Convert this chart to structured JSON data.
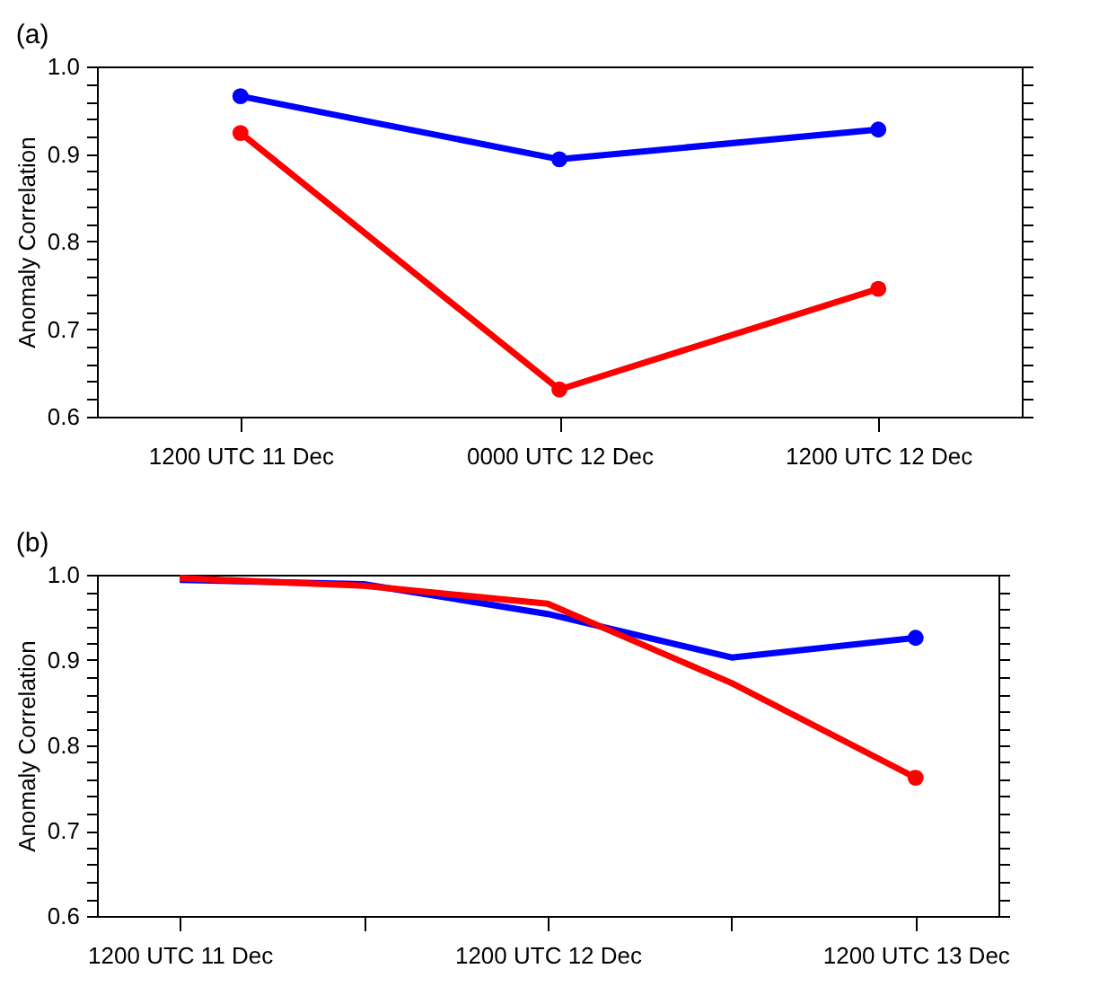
{
  "chart_data": [
    {
      "type": "line",
      "title": "(a)",
      "ylabel": "Anomaly Correlation",
      "categories": [
        "1200 UTC 11 Dec",
        "0000 UTC 12 Dec",
        "1200 UTC 12 Dec"
      ],
      "marker": "circle",
      "line_style": "solid",
      "grid": false,
      "series": [
        {
          "color": "#0000ff",
          "values": [
            0.966,
            0.894,
            0.928
          ]
        },
        {
          "color": "#ff0000",
          "values": [
            0.924,
            0.631,
            0.746
          ]
        }
      ],
      "ylim": [
        0.6,
        1.0
      ],
      "yticks": [
        0.6,
        {
          "value": 0.62,
          "label": null
        },
        {
          "value": 0.64,
          "label": null
        },
        {
          "value": 0.66,
          "label": null
        },
        {
          "value": 0.68,
          "label": null
        },
        0.7,
        {
          "value": 0.72,
          "label": null
        },
        {
          "value": 0.74,
          "label": null
        },
        {
          "value": 0.76,
          "label": null
        },
        {
          "value": 0.78,
          "label": null
        },
        0.8,
        {
          "value": 0.82,
          "label": null
        },
        {
          "value": 0.84,
          "label": null
        },
        {
          "value": 0.86,
          "label": null
        },
        {
          "value": 0.88,
          "label": null
        },
        0.9,
        {
          "value": 0.92,
          "label": null
        },
        {
          "value": 0.94,
          "label": null
        },
        {
          "value": 0.96,
          "label": null
        },
        {
          "value": 0.98,
          "label": null
        },
        {
          "value": 1.0,
          "label": "1.0"
        }
      ]
    },
    {
      "type": "line",
      "title": "(b)",
      "ylabel": "Anomaly Correlation",
      "categories": [
        "1200 UTC 11 Dec",
        null,
        "1200 UTC 12 Dec",
        null,
        "1200 UTC 13 Dec"
      ],
      "line_style": "solid",
      "grid": false,
      "series": [
        {
          "color": "#0000ff",
          "values": [
            0.994,
            0.989,
            0.954,
            0.903,
            0.926
          ]
        },
        {
          "color": "#ff0000",
          "values": [
            0.996,
            0.987,
            0.966,
            0.873,
            0.762
          ]
        },
        {
          "type": "scatter",
          "marker": "circle",
          "color": "#0000ff",
          "x": [
            "1200 UTC 13 Dec"
          ],
          "values": [
            0.926
          ]
        },
        {
          "type": "scatter",
          "marker": "circle",
          "color": "#ff0000",
          "x": [
            "1200 UTC 13 Dec"
          ],
          "values": [
            0.762
          ]
        }
      ],
      "ylim": [
        0.6,
        1.0
      ],
      "yticks": [
        0.6,
        {
          "value": 0.62,
          "label": null
        },
        {
          "value": 0.64,
          "label": null
        },
        {
          "value": 0.66,
          "label": null
        },
        {
          "value": 0.68,
          "label": null
        },
        0.7,
        {
          "value": 0.72,
          "label": null
        },
        {
          "value": 0.74,
          "label": null
        },
        {
          "value": 0.76,
          "label": null
        },
        {
          "value": 0.78,
          "label": null
        },
        0.8,
        {
          "value": 0.82,
          "label": null
        },
        {
          "value": 0.84,
          "label": null
        },
        {
          "value": 0.86,
          "label": null
        },
        {
          "value": 0.88,
          "label": null
        },
        0.9,
        {
          "value": 0.92,
          "label": null
        },
        {
          "value": 0.94,
          "label": null
        },
        {
          "value": 0.96,
          "label": null
        },
        {
          "value": 0.98,
          "label": null
        },
        {
          "value": 1.0,
          "label": "1.0"
        }
      ]
    }
  ]
}
